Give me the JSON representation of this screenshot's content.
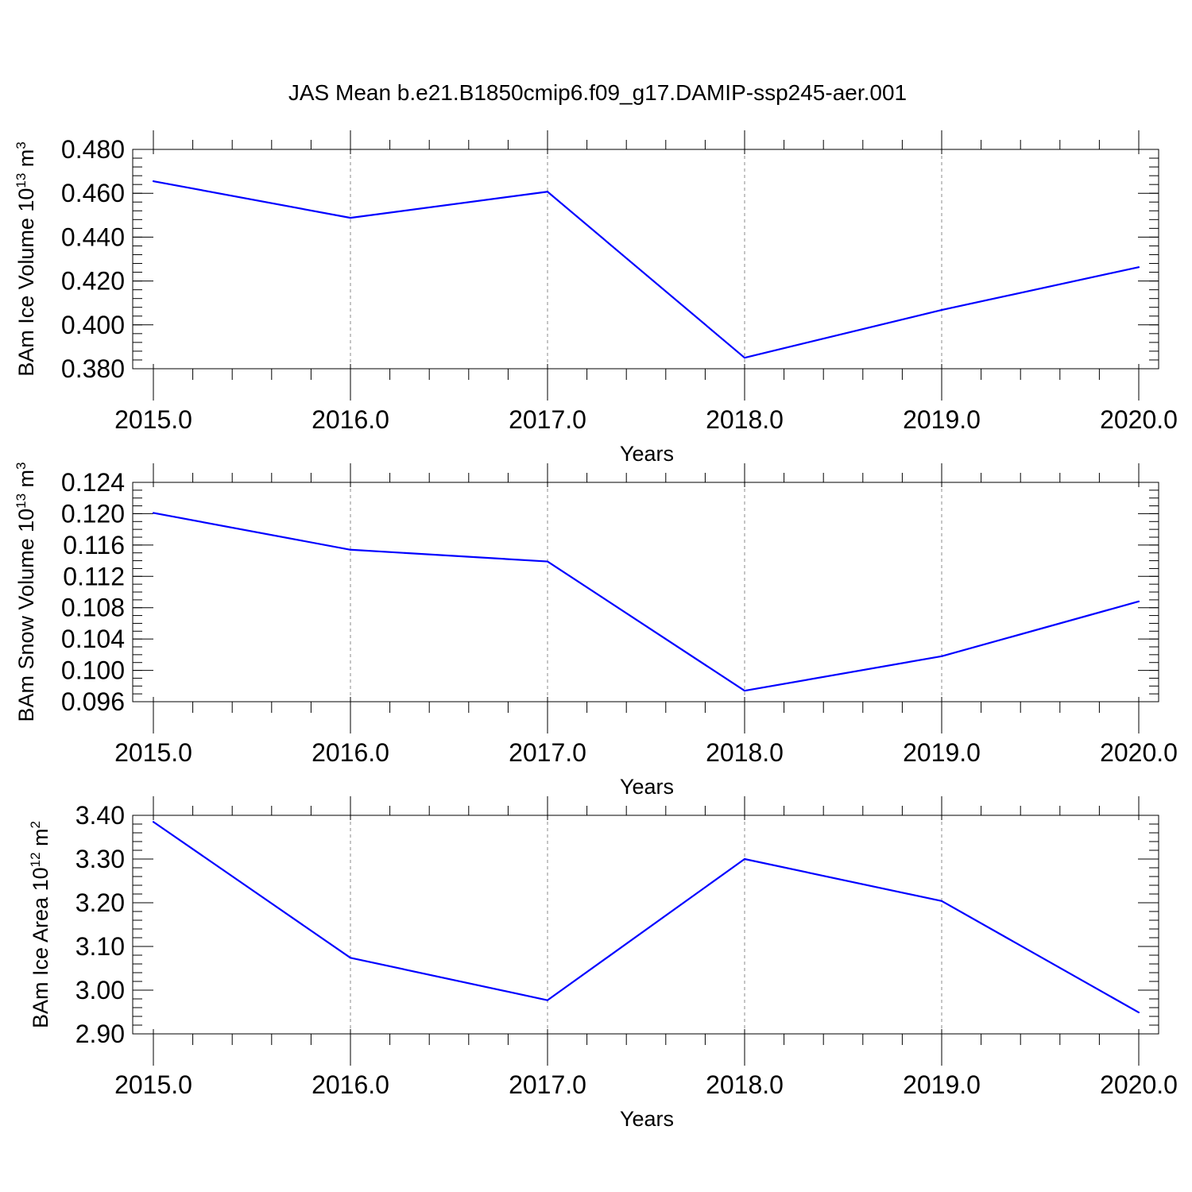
{
  "title": "JAS Mean b.e21.B1850cmip6.f09_g17.DAMIP-ssp245-aer.001",
  "series_color": "#0000ff",
  "chart_data": [
    {
      "type": "line",
      "ylabel": {
        "main": "BAm Ice Volume 10",
        "sup1": "13",
        "mid": " m",
        "sup2": "3"
      },
      "xlabel": "Years",
      "x": [
        2015.0,
        2016.0,
        2017.0,
        2018.0,
        2019.0,
        2020.0
      ],
      "xticklabels": [
        "2015.0",
        "2016.0",
        "2017.0",
        "2018.0",
        "2019.0",
        "2020.0"
      ],
      "series": [
        {
          "name": "BAm Ice Volume",
          "values": [
            0.4655,
            0.4488,
            0.4607,
            0.385,
            0.4068,
            0.4263
          ]
        }
      ],
      "xlim": [
        2015.0,
        2020.0
      ],
      "ylim": [
        0.38,
        0.48
      ],
      "yticks": [
        0.38,
        0.4,
        0.42,
        0.44,
        0.46,
        0.48
      ],
      "yticklabels": [
        "0.380",
        "0.400",
        "0.420",
        "0.440",
        "0.460",
        "0.480"
      ],
      "yminor_step": 0.004,
      "grid": "vertical dashed at major x ticks"
    },
    {
      "type": "line",
      "ylabel": {
        "main": "BAm Snow Volume 10",
        "sup1": "13",
        "mid": " m",
        "sup2": "3"
      },
      "xlabel": "Years",
      "x": [
        2015.0,
        2016.0,
        2017.0,
        2018.0,
        2019.0,
        2020.0
      ],
      "xticklabels": [
        "2015.0",
        "2016.0",
        "2017.0",
        "2018.0",
        "2019.0",
        "2020.0"
      ],
      "series": [
        {
          "name": "BAm Snow Volume",
          "values": [
            0.1201,
            0.1154,
            0.1139,
            0.0974,
            0.1018,
            0.1088
          ]
        }
      ],
      "xlim": [
        2015.0,
        2020.0
      ],
      "ylim": [
        0.096,
        0.124
      ],
      "yticks": [
        0.096,
        0.1,
        0.104,
        0.108,
        0.112,
        0.116,
        0.12,
        0.124
      ],
      "yticklabels": [
        "0.096",
        "0.100",
        "0.104",
        "0.108",
        "0.112",
        "0.116",
        "0.120",
        "0.124"
      ],
      "yminor_step": 0.001,
      "grid": "vertical dashed at major x ticks"
    },
    {
      "type": "line",
      "ylabel": {
        "main": "BAm Ice Area 10",
        "sup1": "12",
        "mid": " m",
        "sup2": "2"
      },
      "xlabel": "Years",
      "x": [
        2015.0,
        2016.0,
        2017.0,
        2018.0,
        2019.0,
        2020.0
      ],
      "xticklabels": [
        "2015.0",
        "2016.0",
        "2017.0",
        "2018.0",
        "2019.0",
        "2020.0"
      ],
      "series": [
        {
          "name": "BAm Ice Area",
          "values": [
            3.385,
            3.074,
            2.977,
            3.3,
            3.204,
            2.949
          ]
        }
      ],
      "xlim": [
        2015.0,
        2020.0
      ],
      "ylim": [
        2.9,
        3.4
      ],
      "yticks": [
        2.9,
        3.0,
        3.1,
        3.2,
        3.3,
        3.4
      ],
      "yticklabels": [
        "2.90",
        "3.00",
        "3.10",
        "3.20",
        "3.30",
        "3.40"
      ],
      "yminor_step": 0.02,
      "grid": "vertical dashed at major x ticks"
    }
  ]
}
